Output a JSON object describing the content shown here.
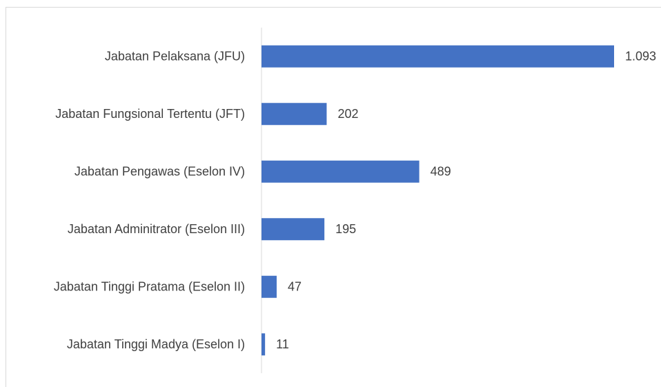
{
  "chart_data": {
    "type": "bar",
    "orientation": "horizontal",
    "categories": [
      "Jabatan Pelaksana (JFU)",
      "Jabatan Fungsional Tertentu (JFT)",
      "Jabatan Pengawas (Eselon IV)",
      "Jabatan Adminitrator (Eselon III)",
      "Jabatan Tinggi Pratama (Eselon II)",
      "Jabatan Tinggi Madya (Eselon I)"
    ],
    "values": [
      1093,
      202,
      489,
      195,
      47,
      11
    ],
    "value_labels": [
      "1.093",
      "202",
      "489",
      "195",
      "47",
      "11"
    ],
    "color": "#4472c4"
  }
}
